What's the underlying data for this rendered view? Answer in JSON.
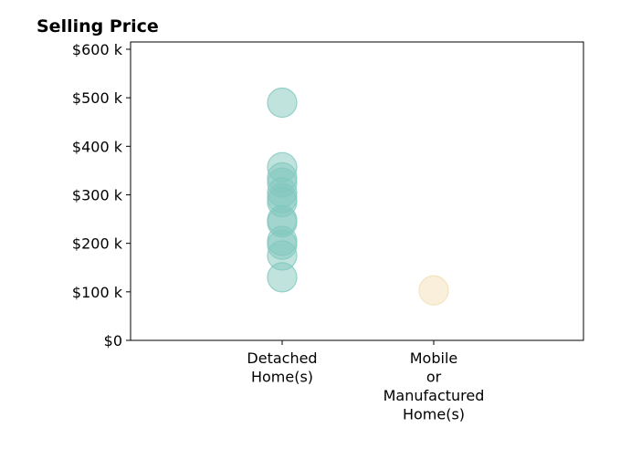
{
  "chart_data": {
    "type": "scatter",
    "title": "Selling Price",
    "xlabel": "",
    "ylabel": "",
    "categories": [
      "Detached Home(s)",
      "Mobile or Manufactured Home(s)"
    ],
    "category_tick_lines": [
      [
        "Detached",
        "Home(s)"
      ],
      [
        "Mobile",
        "or",
        "Manufactured",
        "Home(s)"
      ]
    ],
    "ylim": [
      0,
      615000
    ],
    "y_ticks": [
      0,
      100000,
      200000,
      300000,
      400000,
      500000,
      600000
    ],
    "y_tick_labels": [
      "$0",
      "$100 k",
      "$200 k",
      "$300 k",
      "$400 k",
      "$500 k",
      "$600 k"
    ],
    "grid": false,
    "colors": [
      "#81c8be",
      "#f3dfb5"
    ],
    "series": [
      {
        "category": "Detached Home(s)",
        "values": [
          490000,
          357000,
          336000,
          325000,
          305000,
          293000,
          285000,
          248000,
          243000,
          205000,
          197000,
          175000,
          130000
        ]
      },
      {
        "category": "Mobile or Manufactured Home(s)",
        "values": [
          103000
        ]
      }
    ]
  }
}
